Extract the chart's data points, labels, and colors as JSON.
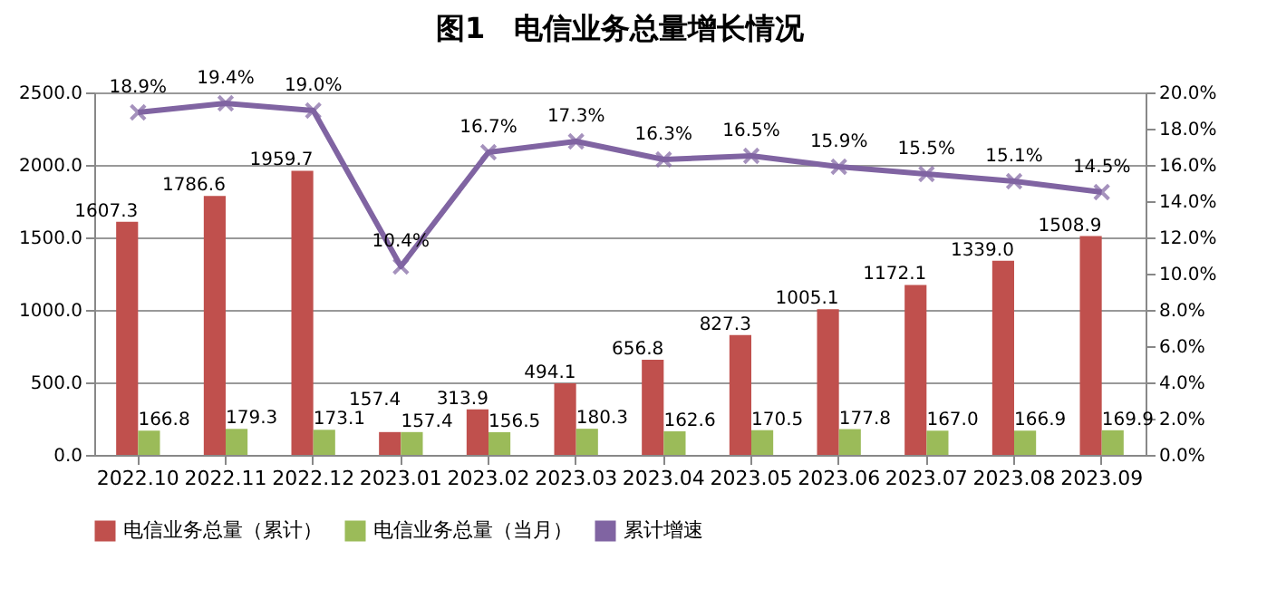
{
  "chart_data": {
    "type": "bar",
    "title": "图1　电信业务总量增长情况",
    "categories": [
      "2022.10",
      "2022.11",
      "2022.12",
      "2023.01",
      "2023.02",
      "2023.03",
      "2023.04",
      "2023.05",
      "2023.06",
      "2023.07",
      "2023.08",
      "2023.09"
    ],
    "series": [
      {
        "name": "电信业务总量（累计）",
        "color": "#c0504d",
        "type": "bar",
        "values": [
          1607.3,
          1786.6,
          1959.7,
          157.4,
          313.9,
          494.1,
          656.8,
          827.3,
          1005.1,
          1172.1,
          1339.0,
          1508.9
        ],
        "value_labels": [
          "1607.3",
          "1786.6",
          "1959.7",
          "157.4",
          "313.9",
          "494.1",
          "656.8",
          "827.3",
          "1005.1",
          "1172.1",
          "1339.0",
          "1508.9"
        ]
      },
      {
        "name": "电信业务总量（当月）",
        "color": "#9bbb59",
        "type": "bar",
        "values": [
          166.8,
          179.3,
          173.1,
          157.4,
          156.5,
          180.3,
          162.6,
          170.5,
          177.8,
          167.0,
          166.9,
          169.9
        ],
        "value_labels": [
          "166.8",
          "179.3",
          "173.1",
          "157.4",
          "156.5",
          "180.3",
          "162.6",
          "170.5",
          "177.8",
          "167.0",
          "166.9",
          "169.9"
        ]
      },
      {
        "name": "累计增速",
        "color": "#8064a2",
        "type": "line",
        "axis": "y2",
        "marker": "cross",
        "values": [
          18.9,
          19.4,
          19.0,
          10.4,
          16.7,
          17.3,
          16.3,
          16.5,
          15.9,
          15.5,
          15.1,
          14.5
        ],
        "value_labels": [
          "18.9%",
          "19.4%",
          "19.0%",
          "10.4%",
          "16.7%",
          "17.3%",
          "16.3%",
          "16.5%",
          "15.9%",
          "15.5%",
          "15.1%",
          "14.5%"
        ]
      }
    ],
    "ylim": [
      0,
      2500
    ],
    "yticks": [
      {
        "value": 0,
        "label": "0.0"
      },
      {
        "value": 500,
        "label": "500.0"
      },
      {
        "value": 1000,
        "label": "1000.0"
      },
      {
        "value": 1500,
        "label": "1500.0"
      },
      {
        "value": 2000,
        "label": "2000.0"
      },
      {
        "value": 2500,
        "label": "2500.0"
      }
    ],
    "y2lim": [
      0,
      20
    ],
    "y2ticks": [
      {
        "value": 0,
        "label": "0.0%"
      },
      {
        "value": 2,
        "label": "2.0%"
      },
      {
        "value": 4,
        "label": "4.0%"
      },
      {
        "value": 6,
        "label": "6.0%"
      },
      {
        "value": 8,
        "label": "8.0%"
      },
      {
        "value": 10,
        "label": "10.0%"
      },
      {
        "value": 12,
        "label": "12.0%"
      },
      {
        "value": 14,
        "label": "14.0%"
      },
      {
        "value": 16,
        "label": "16.0%"
      },
      {
        "value": 18,
        "label": "18.0%"
      },
      {
        "value": 20,
        "label": "20.0%"
      }
    ],
    "grid": "y",
    "legend": "bottom"
  }
}
